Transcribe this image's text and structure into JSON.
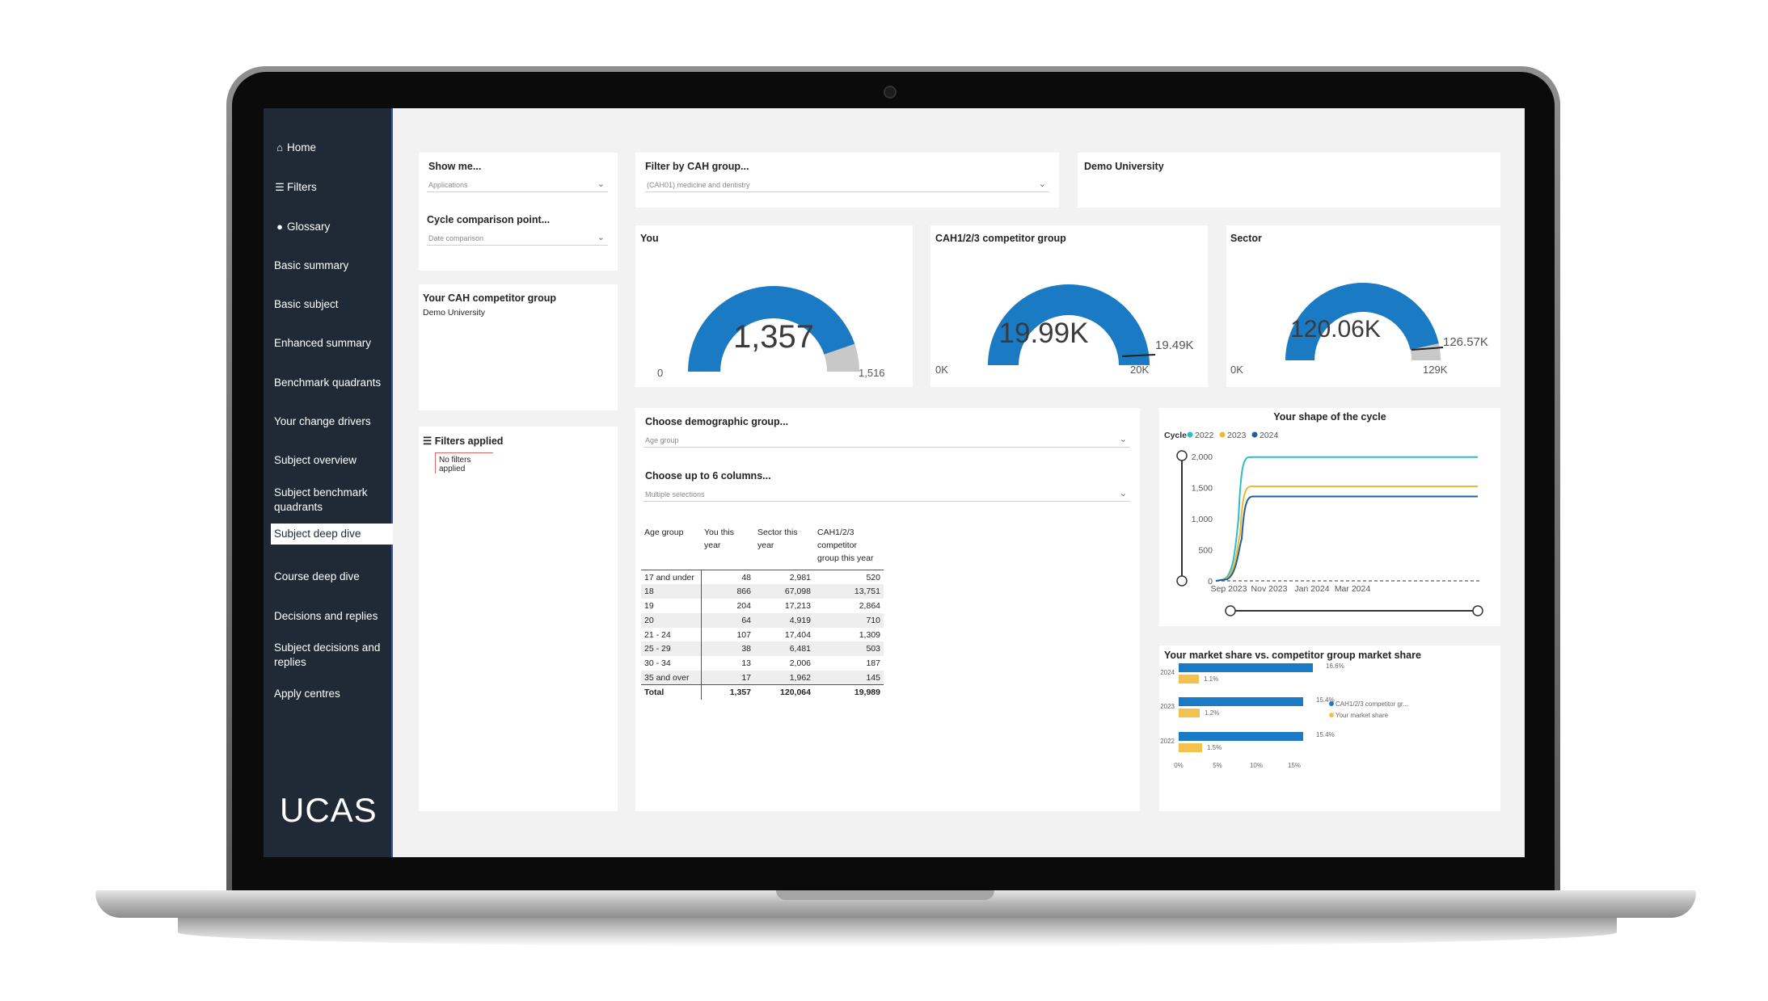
{
  "sidebar": {
    "items": [
      {
        "label": "Home",
        "icon": "home-icon"
      },
      {
        "label": "Filters",
        "icon": "menu-icon"
      },
      {
        "label": "Glossary",
        "icon": "info-icon"
      },
      {
        "label": "Basic summary"
      },
      {
        "label": "Basic subject"
      },
      {
        "label": "Enhanced summary"
      },
      {
        "label": "Benchmark quadrants"
      },
      {
        "label": "Your change drivers"
      },
      {
        "label": "Subject overview"
      },
      {
        "label": "Subject benchmark quadrants"
      },
      {
        "label": "Subject deep dive",
        "active": true
      },
      {
        "label": "Course deep dive"
      },
      {
        "label": "Decisions and replies"
      },
      {
        "label": "Subject decisions and replies"
      },
      {
        "label": "Apply centres"
      }
    ],
    "logo": "UCAS"
  },
  "filters": {
    "show_me_label": "Show me...",
    "show_me_value": "Applications",
    "cycle_label": "Cycle comparison point...",
    "cycle_value": "Date comparison",
    "cah_filter_label": "Filter by CAH group...",
    "cah_filter_value": "(CAH01) medicine and dentistry",
    "provider": "Demo University"
  },
  "competitor": {
    "title": "Your CAH competitor group",
    "value": "Demo University"
  },
  "filters_applied": {
    "title": "Filters applied",
    "text_line1": "No filters",
    "text_line2": "applied"
  },
  "gauges": [
    {
      "title": "You",
      "value": "1,357",
      "min": "0",
      "max": "1,516",
      "target": "",
      "fill": 0.895
    },
    {
      "title": "CAH1/2/3 competitor group",
      "value": "19.99K",
      "min": "0K",
      "max": "20K",
      "target": "19.49K",
      "fill": 0.9995
    },
    {
      "title": "Sector",
      "value": "120.06K",
      "min": "0K",
      "max": "129K",
      "target": "126.57K",
      "fill": 0.93
    }
  ],
  "demographic": {
    "choose_label": "Choose demographic group...",
    "choose_value": "Age group",
    "columns_label": "Choose up to 6 columns...",
    "columns_value": "Multiple selections"
  },
  "age_table": {
    "headers": [
      "Age group",
      "You this year",
      "Sector this year",
      "CAH1/2/3 competitor group this year"
    ],
    "rows": [
      [
        "17 and under",
        "48",
        "2,981",
        "520"
      ],
      [
        "18",
        "866",
        "67,098",
        "13,751"
      ],
      [
        "19",
        "204",
        "17,213",
        "2,864"
      ],
      [
        "20",
        "64",
        "4,919",
        "710"
      ],
      [
        "21 - 24",
        "107",
        "17,404",
        "1,309"
      ],
      [
        "25 - 29",
        "38",
        "6,481",
        "503"
      ],
      [
        "30 - 34",
        "13",
        "2,006",
        "187"
      ],
      [
        "35 and over",
        "17",
        "1,962",
        "145"
      ]
    ],
    "total": [
      "Total",
      "1,357",
      "120,064",
      "19,989"
    ]
  },
  "colors": {
    "accent_blue": "#1a7bc4",
    "gauge_track": "#c8c8c8",
    "cycle_2022": "#2cc0c4",
    "cycle_2023": "#f2b632",
    "cycle_2024": "#1f5f9e",
    "sidebar": "#1f2a36"
  },
  "chart_data": [
    {
      "type": "line",
      "title": "Your shape of the cycle",
      "legend_title": "Cycle",
      "legend_position": "top-left",
      "x_tick_labels": [
        "Sep 2023",
        "Nov 2023",
        "Jan 2024",
        "Mar 2024"
      ],
      "y_tick_labels": [
        "0",
        "500",
        "1,000",
        "1,500",
        "2,000"
      ],
      "ylim": [
        0,
        2000
      ],
      "series": [
        {
          "name": "2022",
          "color": "#2cc0c4",
          "plateau": 1990
        },
        {
          "name": "2023",
          "color": "#f2b632",
          "plateau": 1520
        },
        {
          "name": "2024",
          "color": "#1f5f9e",
          "plateau": 1357
        }
      ]
    },
    {
      "type": "bar",
      "orientation": "horizontal",
      "title": "Your market share vs. competitor group market share",
      "categories": [
        "2024",
        "2023",
        "2022"
      ],
      "x_tick_labels": [
        "0%",
        "5%",
        "10%",
        "15%"
      ],
      "xlim": [
        0,
        16.6
      ],
      "legend_position": "right",
      "series": [
        {
          "name": "CAH1/2/3 competitor gr...",
          "color": "#1a7bc4",
          "values": [
            16.6,
            15.4,
            15.4
          ],
          "labels": [
            "16.6%",
            "15.4%",
            "15.4%"
          ]
        },
        {
          "name": "Your market share",
          "color": "#f2c14e",
          "values": [
            1.1,
            1.2,
            1.5
          ],
          "labels": [
            "1.1%",
            "1.2%",
            "1.5%"
          ]
        }
      ]
    }
  ]
}
